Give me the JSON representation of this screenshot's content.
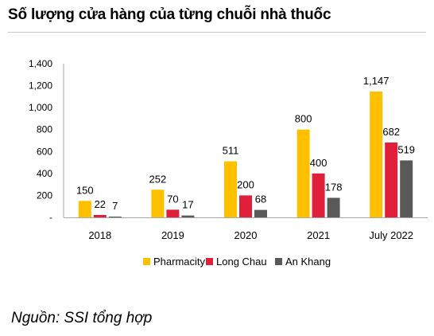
{
  "title": "Số lượng cửa hàng của từng chuỗi nhà thuốc",
  "source": "Nguồn: SSI tổng hợp",
  "colors": {
    "Pharmacity": "#FFC000",
    "Long Chau": "#E0203A",
    "An Khang": "#595959"
  },
  "chart_data": {
    "type": "bar",
    "title": "Số lượng cửa hàng của từng chuỗi nhà thuốc",
    "categories": [
      "2018",
      "2019",
      "2020",
      "2021",
      "July 2022"
    ],
    "series": [
      {
        "name": "Pharmacity",
        "values": [
          150,
          252,
          511,
          800,
          1147
        ],
        "labels": [
          "150",
          "252",
          "511",
          "800",
          "1,147"
        ]
      },
      {
        "name": "Long Chau",
        "values": [
          22,
          70,
          200,
          400,
          682
        ],
        "labels": [
          "22",
          "70",
          "200",
          "400",
          "682"
        ]
      },
      {
        "name": "An Khang",
        "values": [
          7,
          17,
          68,
          178,
          519
        ],
        "labels": [
          "7",
          "17",
          "68",
          "178",
          "519"
        ]
      }
    ],
    "yticks": [
      "-",
      "200",
      "400",
      "600",
      "800",
      "1,000",
      "1,200",
      "1,400"
    ],
    "ylim": [
      0,
      1400
    ],
    "grid": false,
    "legend_position": "bottom"
  }
}
